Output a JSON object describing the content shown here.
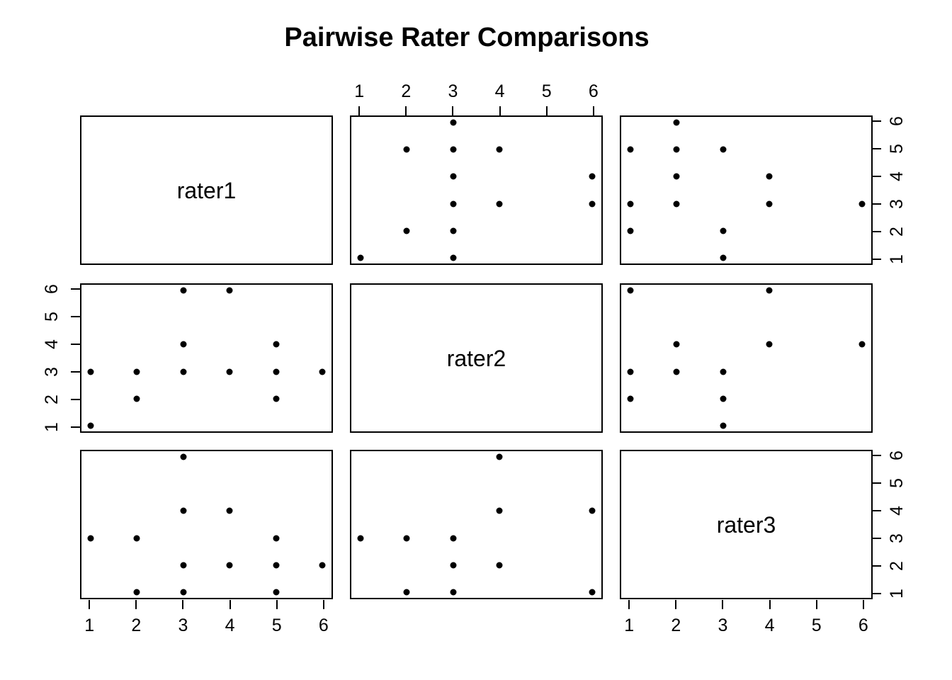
{
  "chart_data": {
    "type": "scatter",
    "subtype": "scatterplot-matrix",
    "title": "Pairwise Rater Comparisons",
    "variables": [
      "rater1",
      "rater2",
      "rater3"
    ],
    "axis": {
      "ticks": [
        1,
        2,
        3,
        4,
        5,
        6
      ],
      "range": [
        0.8,
        6.2
      ]
    },
    "grid": false,
    "legend": "none",
    "point_color": "#000000",
    "background": "#ffffff",
    "axes_strips": [
      {
        "side": "top",
        "variable": "rater2",
        "labels": [
          "1",
          "2",
          "3",
          "4",
          "5",
          "6"
        ]
      },
      {
        "side": "left",
        "variable": "rater2",
        "labels": [
          "1",
          "2",
          "3",
          "4",
          "5",
          "6"
        ]
      },
      {
        "side": "right",
        "variable": "rater1",
        "labels": [
          "1",
          "2",
          "3",
          "4",
          "5",
          "6"
        ]
      },
      {
        "side": "right",
        "variable": "rater3",
        "labels": [
          "1",
          "2",
          "3",
          "4",
          "5",
          "6"
        ]
      },
      {
        "side": "bottom",
        "variable": "rater1",
        "labels": [
          "1",
          "2",
          "3",
          "4",
          "5",
          "6"
        ]
      },
      {
        "side": "bottom",
        "variable": "rater3",
        "labels": [
          "1",
          "2",
          "3",
          "4",
          "5",
          "6"
        ]
      }
    ],
    "panels": [
      {
        "row": 0,
        "col": 1,
        "x_var": "rater2",
        "y_var": "rater1",
        "points": [
          [
            3,
            6
          ],
          [
            2,
            5
          ],
          [
            3,
            5
          ],
          [
            4,
            5
          ],
          [
            3,
            4
          ],
          [
            6,
            4
          ],
          [
            3,
            3
          ],
          [
            4,
            3
          ],
          [
            6,
            3
          ],
          [
            2,
            2
          ],
          [
            3,
            2
          ],
          [
            1,
            1
          ],
          [
            3,
            1
          ]
        ]
      },
      {
        "row": 0,
        "col": 2,
        "x_var": "rater3",
        "y_var": "rater1",
        "points": [
          [
            2,
            6
          ],
          [
            1,
            5
          ],
          [
            2,
            5
          ],
          [
            3,
            5
          ],
          [
            2,
            4
          ],
          [
            4,
            4
          ],
          [
            1,
            3
          ],
          [
            2,
            3
          ],
          [
            4,
            3
          ],
          [
            6,
            3
          ],
          [
            1,
            2
          ],
          [
            3,
            2
          ],
          [
            3,
            1
          ]
        ]
      },
      {
        "row": 1,
        "col": 0,
        "x_var": "rater1",
        "y_var": "rater2",
        "points": [
          [
            3,
            6
          ],
          [
            4,
            6
          ],
          [
            3,
            4
          ],
          [
            5,
            4
          ],
          [
            1,
            3
          ],
          [
            2,
            3
          ],
          [
            3,
            3
          ],
          [
            4,
            3
          ],
          [
            5,
            3
          ],
          [
            6,
            3
          ],
          [
            2,
            2
          ],
          [
            5,
            2
          ],
          [
            1,
            1
          ]
        ]
      },
      {
        "row": 1,
        "col": 2,
        "x_var": "rater3",
        "y_var": "rater2",
        "points": [
          [
            1,
            6
          ],
          [
            4,
            6
          ],
          [
            2,
            4
          ],
          [
            4,
            4
          ],
          [
            6,
            4
          ],
          [
            1,
            3
          ],
          [
            2,
            3
          ],
          [
            3,
            3
          ],
          [
            1,
            2
          ],
          [
            3,
            2
          ],
          [
            3,
            1
          ]
        ]
      },
      {
        "row": 2,
        "col": 0,
        "x_var": "rater1",
        "y_var": "rater3",
        "points": [
          [
            3,
            6
          ],
          [
            3,
            4
          ],
          [
            4,
            4
          ],
          [
            1,
            3
          ],
          [
            2,
            3
          ],
          [
            5,
            3
          ],
          [
            3,
            2
          ],
          [
            4,
            2
          ],
          [
            5,
            2
          ],
          [
            6,
            2
          ],
          [
            2,
            1
          ],
          [
            3,
            1
          ],
          [
            5,
            1
          ]
        ]
      },
      {
        "row": 2,
        "col": 1,
        "x_var": "rater2",
        "y_var": "rater3",
        "points": [
          [
            4,
            6
          ],
          [
            4,
            4
          ],
          [
            6,
            4
          ],
          [
            1,
            3
          ],
          [
            2,
            3
          ],
          [
            3,
            3
          ],
          [
            3,
            2
          ],
          [
            4,
            2
          ],
          [
            2,
            1
          ],
          [
            3,
            1
          ],
          [
            6,
            1
          ]
        ]
      }
    ]
  }
}
